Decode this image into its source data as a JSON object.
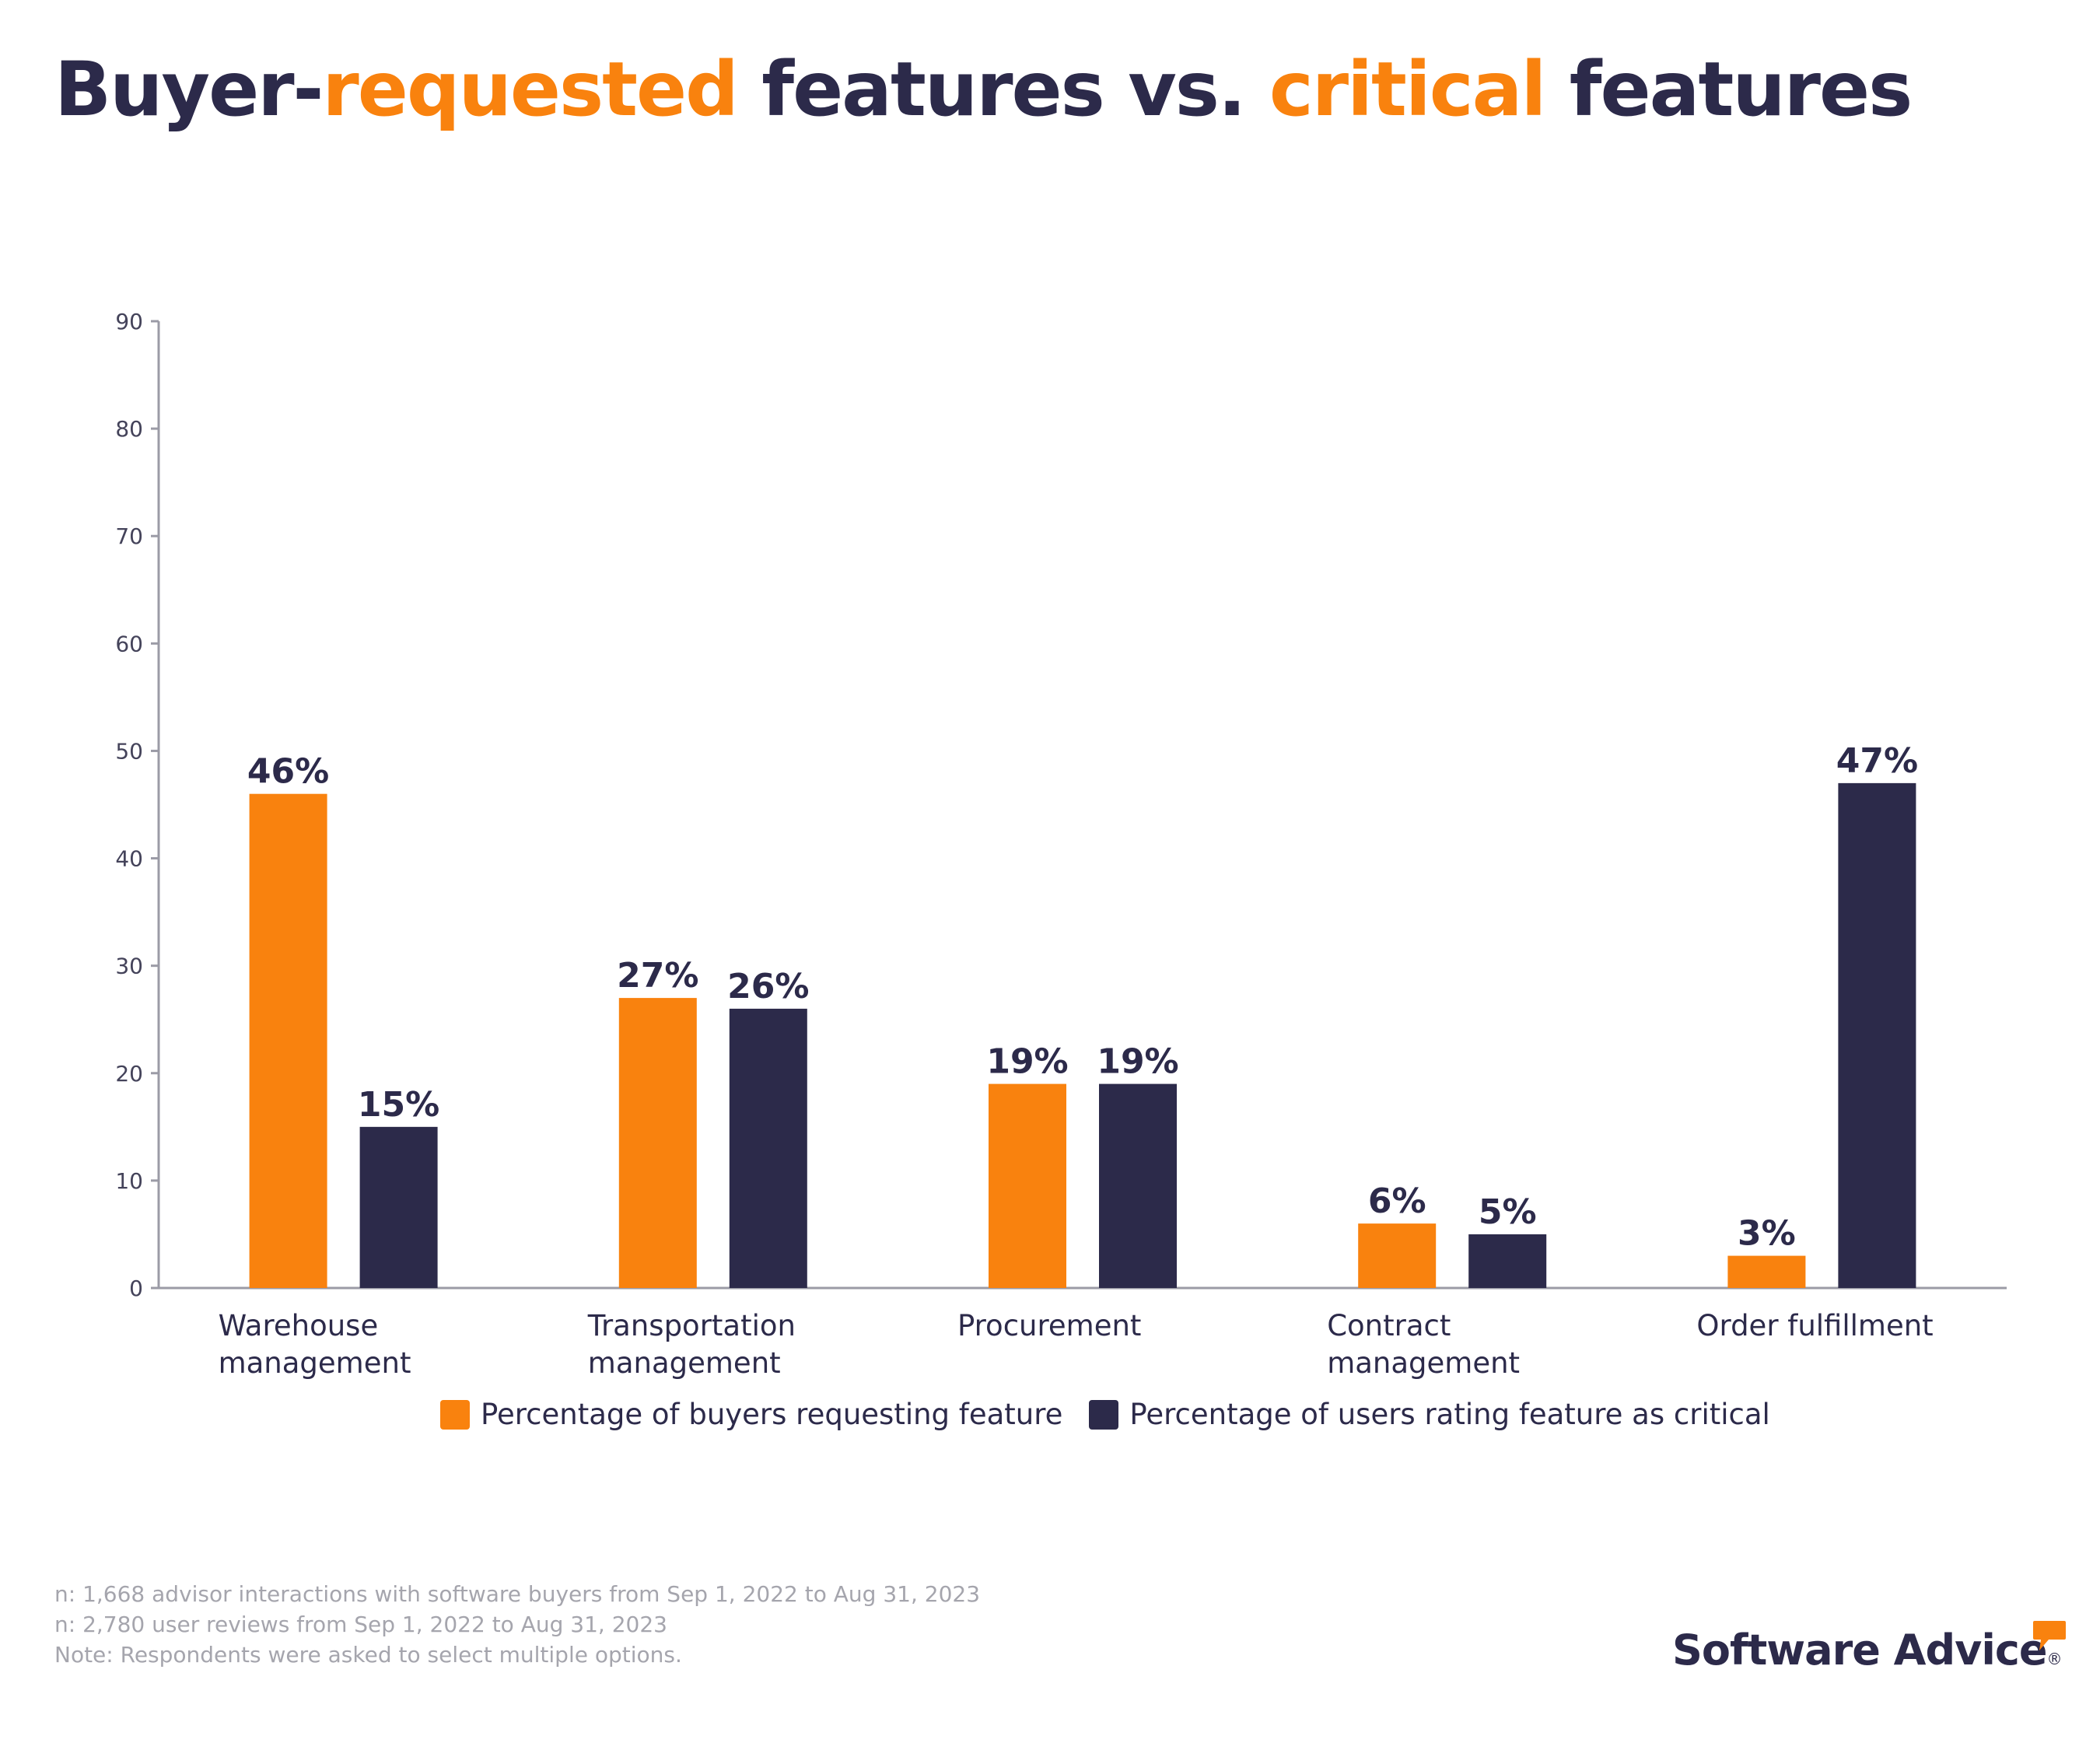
{
  "title": {
    "part1": "Buyer-",
    "part2": "requested",
    "part3": " features vs. ",
    "part4": "critical",
    "part5": " features"
  },
  "colors": {
    "orange": "#f9820e",
    "navy": "#2c2a4a",
    "axis": "#9b9ba6",
    "footnote": "#a5a5ad"
  },
  "chart_data": {
    "type": "bar",
    "categories": [
      [
        "Warehouse",
        "management"
      ],
      [
        "Transportation",
        "management"
      ],
      [
        "Procurement"
      ],
      [
        "Contract",
        "management"
      ],
      [
        "Order fulfillment"
      ]
    ],
    "series": [
      {
        "name": "Percentage of buyers requesting feature",
        "color": "#f9820e",
        "values": [
          46,
          27,
          19,
          6,
          3
        ],
        "labels": [
          "46%",
          "27%",
          "19%",
          "6%",
          "3%"
        ]
      },
      {
        "name": "Percentage of users rating feature as critical",
        "color": "#2c2a4a",
        "values": [
          15,
          26,
          19,
          5,
          47
        ],
        "labels": [
          "15%",
          "26%",
          "19%",
          "5%",
          "47%"
        ]
      }
    ],
    "yticks": [
      0,
      10,
      20,
      30,
      40,
      50,
      60,
      70,
      80,
      90
    ],
    "ylim": [
      0,
      90
    ],
    "grid": false,
    "legend_position": "bottom"
  },
  "legend": [
    {
      "label": "Percentage of buyers requesting feature",
      "color": "#f9820e"
    },
    {
      "label": "Percentage of users rating feature as critical",
      "color": "#2c2a4a"
    }
  ],
  "footnotes": [
    "n: 1,668 advisor interactions with software buyers from Sep 1, 2022 to Aug 31, 2023",
    "n: 2,780 user reviews from Sep 1, 2022 to Aug 31, 2023",
    "Note: Respondents were asked to select multiple options."
  ],
  "brand": {
    "name": "Software Advice",
    "trademark": "®",
    "icon": "speech-bubble-icon"
  }
}
